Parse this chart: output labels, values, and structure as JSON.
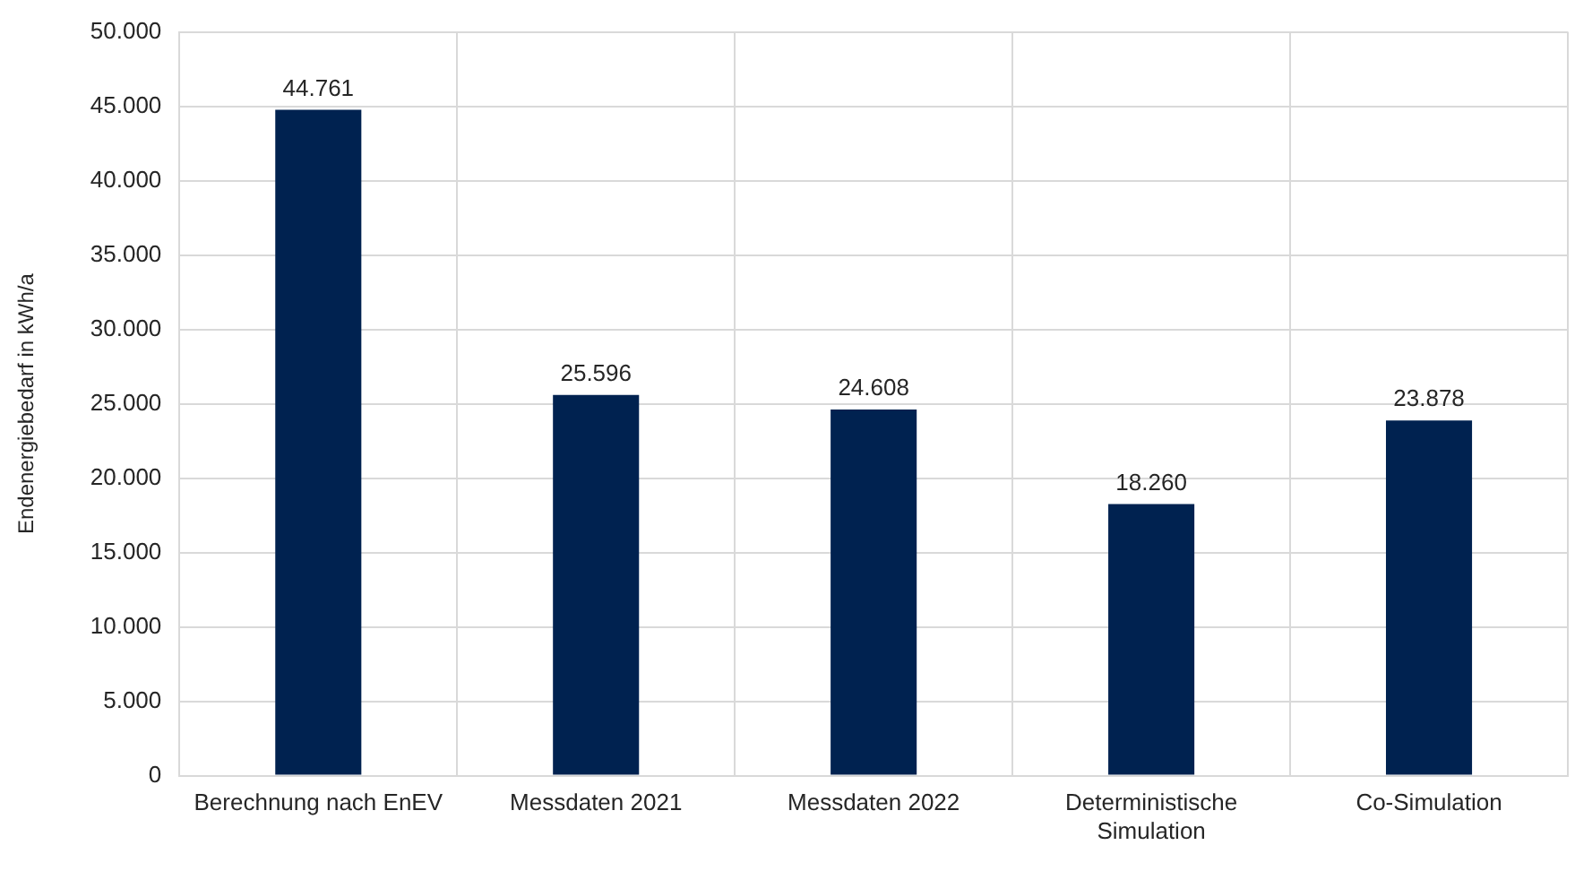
{
  "chart_data": {
    "type": "bar",
    "ylabel": "Endenergiebedarf in kWh/a",
    "categories": [
      "Berechnung nach EnEV",
      "Messdaten 2021",
      "Messdaten 2022",
      "Deterministische Simulation",
      "Co-Simulation"
    ],
    "values": [
      44761,
      25596,
      24608,
      18260,
      23878
    ],
    "value_labels": [
      "44.761",
      "25.596",
      "24.608",
      "18.260",
      "23.878"
    ],
    "color": "#002250",
    "ylim": [
      0,
      50000
    ],
    "yticks": [
      0,
      {
        "value": 5000,
        "label": "5.000"
      },
      {
        "value": 10000,
        "label": "10.000"
      },
      {
        "value": 15000,
        "label": "15.000"
      },
      {
        "value": 20000,
        "label": "20.000"
      },
      {
        "value": 25000,
        "label": "25.000"
      },
      {
        "value": 30000,
        "label": "30.000"
      },
      {
        "value": 35000,
        "label": "35.000"
      },
      {
        "value": 40000,
        "label": "40.000"
      },
      {
        "value": 45000,
        "label": "45.000"
      },
      {
        "value": 50000,
        "label": "50.000"
      }
    ],
    "grid": true
  }
}
